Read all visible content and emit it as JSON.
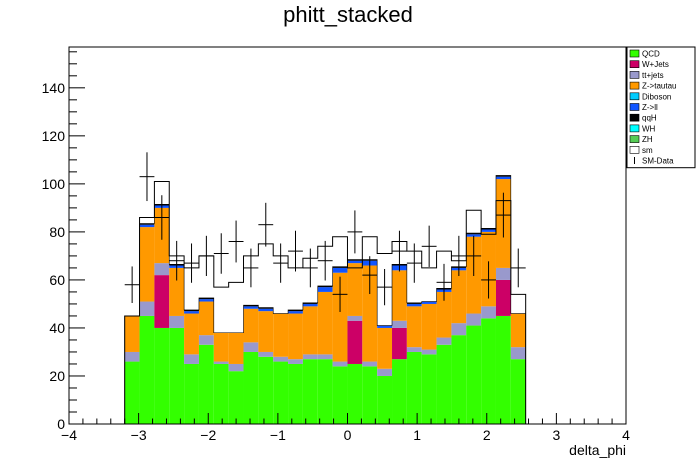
{
  "chart_data": {
    "type": "bar",
    "title": "phitt_stacked",
    "xlabel": "delta_phi",
    "ylabel": "",
    "xlim": [
      -4,
      4
    ],
    "ylim": [
      0,
      157
    ],
    "x_ticks": [
      "−4",
      "−3",
      "−2",
      "−1",
      "0",
      "1",
      "2",
      "3",
      "4"
    ],
    "y_ticks": [
      "0",
      "20",
      "40",
      "60",
      "80",
      "100",
      "120",
      "140"
    ],
    "bins_start": -3.2,
    "bin_width": 0.2133,
    "stacked": true,
    "series": [
      {
        "name": "QCD",
        "color": "#33ff00",
        "values": [
          26,
          45,
          40,
          40,
          25,
          33,
          25,
          22,
          30,
          28,
          26,
          25,
          27,
          27,
          24,
          25,
          24,
          20,
          27,
          30,
          29,
          33,
          37,
          41,
          44,
          45,
          27
        ]
      },
      {
        "name": "W+Jets",
        "color": "#cc0066",
        "values": [
          0,
          0,
          22,
          0,
          0,
          0,
          0,
          0,
          0,
          0,
          0,
          0,
          0,
          0,
          0,
          18,
          0,
          0,
          13,
          0,
          0,
          0,
          0,
          0,
          0,
          15,
          0
        ]
      },
      {
        "name": "tt+jets",
        "color": "#9999cc",
        "values": [
          4,
          6,
          5,
          5,
          4,
          4,
          1,
          3,
          4,
          2,
          2,
          2,
          2,
          2,
          2,
          2,
          2,
          3,
          3,
          2,
          2,
          3,
          5,
          5,
          5,
          5,
          5
        ]
      },
      {
        "name": "Z->tautau",
        "color": "#ff9900",
        "values": [
          15,
          31,
          23,
          20,
          17,
          14,
          12,
          13,
          14,
          17,
          18,
          19,
          20,
          26,
          37,
          22,
          40,
          17,
          21,
          17,
          19,
          19,
          22,
          32,
          31,
          37,
          14
        ]
      },
      {
        "name": "Diboson",
        "color": "#00ccff",
        "values": [
          0,
          0,
          0,
          0,
          0,
          0,
          0,
          0,
          0,
          0,
          0,
          0,
          0,
          0,
          0,
          0,
          0,
          0,
          0,
          0,
          0,
          0,
          0,
          0,
          0,
          0,
          0
        ]
      },
      {
        "name": "Z->ll",
        "color": "#1155ff",
        "values": [
          0,
          1,
          1,
          1,
          1,
          1,
          0,
          0,
          1,
          1,
          0,
          1,
          1,
          2,
          2,
          1,
          2,
          1,
          2,
          1,
          1,
          1,
          1,
          1,
          1,
          1,
          0
        ]
      },
      {
        "name": "qqH",
        "color": "#000000",
        "values": [
          0,
          0.5,
          0.5,
          0.5,
          0.5,
          0.5,
          0,
          0,
          0.5,
          0.5,
          0,
          0.5,
          0.5,
          0.5,
          0.5,
          0.5,
          0.5,
          0,
          0.5,
          0.5,
          0,
          0.5,
          0.5,
          0.5,
          0.5,
          0.5,
          0
        ]
      },
      {
        "name": "WH",
        "color": "#00ffff",
        "values": [
          0,
          0,
          0,
          0,
          0,
          0,
          0,
          0,
          0,
          0,
          0,
          0,
          0,
          0,
          0,
          0,
          0,
          0,
          0,
          0,
          0,
          0,
          0,
          0,
          0,
          0,
          0
        ]
      },
      {
        "name": "ZH",
        "color": "#55cc55",
        "values": [
          0,
          0,
          0,
          0,
          0,
          0,
          0,
          0,
          0,
          0,
          0,
          0,
          0,
          0,
          0,
          0,
          0,
          0,
          0,
          0,
          0,
          0,
          0,
          0,
          0,
          0,
          0
        ]
      }
    ],
    "sm": {
      "name": "sm",
      "color": "#ffffff",
      "values": [
        45,
        86,
        101,
        70,
        65,
        70,
        57,
        59,
        70,
        75,
        70,
        65,
        69,
        74,
        78,
        65,
        78,
        71,
        76,
        72,
        65,
        72,
        68,
        89,
        79,
        93,
        54
      ]
    },
    "data": {
      "name": "SM-Data",
      "values": [
        58,
        103,
        86,
        68,
        67,
        70,
        71,
        76,
        65,
        83,
        67,
        72,
        65,
        68,
        54,
        80,
        62,
        57,
        72,
        67,
        74,
        59,
        70,
        70,
        60,
        87,
        65
      ]
    },
    "legend_placement": "top-right",
    "grid": false
  }
}
